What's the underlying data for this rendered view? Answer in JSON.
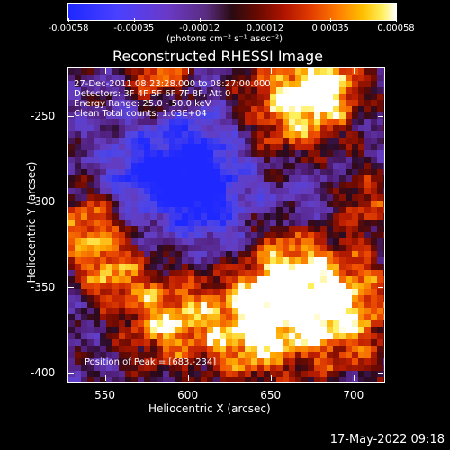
{
  "colorbar": {
    "tick_labels": [
      "-0.00058",
      "-0.00035",
      "-0.00012",
      "0.00012",
      "0.00035",
      "0.00058"
    ],
    "units_label": "(photons cm⁻² s⁻¹ asec⁻²)",
    "range": [
      -0.00058,
      0.00058
    ]
  },
  "chart_data": {
    "type": "heatmap",
    "title": "Reconstructed RHESSI Image",
    "xlabel": "Heliocentric X (arcsec)",
    "ylabel": "Heliocentric Y (arcsec)",
    "xlim": [
      528,
      718
    ],
    "ylim": [
      -405,
      -222
    ],
    "x_ticks": [
      "550",
      "600",
      "650",
      "700"
    ],
    "x_tick_values": [
      550,
      600,
      650,
      700
    ],
    "y_ticks": [
      "-250",
      "-300",
      "-350",
      "-400"
    ],
    "y_tick_values": [
      -250,
      -300,
      -350,
      -400
    ],
    "annotations": {
      "time": "27-Dec-2011 08:23:28.000 to 08:27:00.000",
      "detectors": "Detectors: 3F 4F 5F 6F 7F 8F, Att 0",
      "energy": "Energy Range: 25.0 - 50.0 keV",
      "clean": "Clean     Total counts: 1.03E+04",
      "peak": "Position of Peak = [683,-234]"
    },
    "peak": [
      683,
      -234
    ]
  },
  "timestamp": "17-May-2022 09:18"
}
